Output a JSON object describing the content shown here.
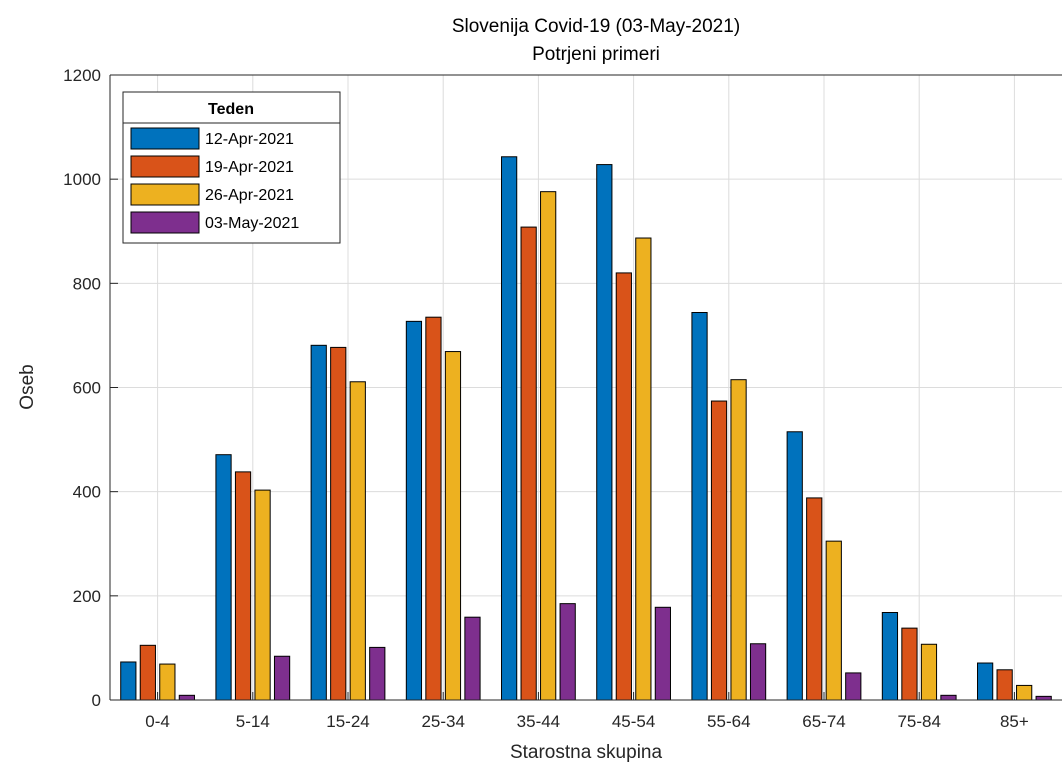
{
  "chart_data": {
    "type": "bar",
    "title": "Slovenija Covid-19 (03-May-2021)",
    "subtitle": "Potrjeni primeri",
    "xlabel": "Starostna skupina",
    "ylabel": "Oseb",
    "ylim": [
      0,
      1200
    ],
    "yticks": [
      0,
      200,
      400,
      600,
      800,
      1000,
      1200
    ],
    "grid": true,
    "legend": {
      "title": "Teden",
      "position": "top-left"
    },
    "categories": [
      "0-4",
      "5-14",
      "15-24",
      "25-34",
      "35-44",
      "45-54",
      "55-64",
      "65-74",
      "75-84",
      "85+"
    ],
    "series": [
      {
        "name": "12-Apr-2021",
        "color": "#0072BD",
        "values": [
          73,
          471,
          681,
          727,
          1043,
          1028,
          744,
          515,
          168,
          71
        ]
      },
      {
        "name": "19-Apr-2021",
        "color": "#D95319",
        "values": [
          105,
          438,
          677,
          735,
          908,
          820,
          574,
          388,
          138,
          58
        ]
      },
      {
        "name": "26-Apr-2021",
        "color": "#EDB120",
        "values": [
          69,
          403,
          611,
          669,
          976,
          887,
          615,
          305,
          107,
          28
        ]
      },
      {
        "name": "03-May-2021",
        "color": "#7E2F8E",
        "values": [
          9,
          84,
          101,
          159,
          185,
          178,
          108,
          52,
          9,
          7
        ]
      }
    ]
  }
}
